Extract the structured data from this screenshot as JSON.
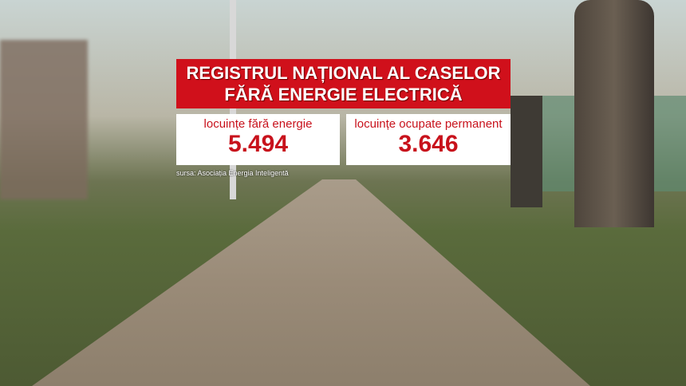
{
  "overlay": {
    "title_line1": "REGISTRUL NAȚIONAL AL CASELOR",
    "title_line2": "FĂRĂ ENERGIE ELECTRICĂ",
    "stats": [
      {
        "label": "locuințe fără energie",
        "value": "5.494"
      },
      {
        "label": "locuințe ocupate permanent",
        "value": "3.646"
      }
    ],
    "source": "sursa: Asociația Energia Inteligentă"
  },
  "colors": {
    "accent_red": "#d0101b",
    "box_bg": "#ffffff"
  }
}
